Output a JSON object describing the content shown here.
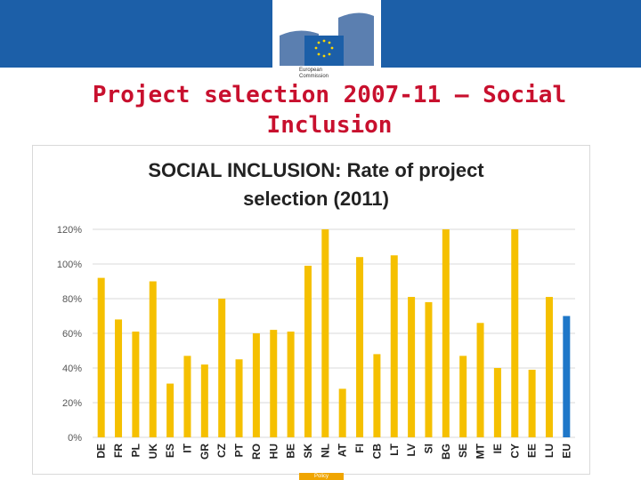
{
  "header": {
    "logo_line1": "European",
    "logo_line2": "Commission"
  },
  "slide": {
    "title_line1": "Project selection 2007-11 – Social",
    "title_line2": "Inclusion"
  },
  "footer": {
    "tag": "Policy"
  },
  "colors": {
    "bar": "#f5c000",
    "highlight": "#1f77c8",
    "grid": "#d9d9d9"
  },
  "chart_data": {
    "type": "bar",
    "title_line1": "SOCIAL INCLUSION: Rate of project",
    "title_line2": "selection (2011)",
    "xlabel": "",
    "ylabel": "",
    "ylim": [
      0,
      1.2
    ],
    "yticks": [
      "0%",
      "20%",
      "40%",
      "60%",
      "80%",
      "100%",
      "120%"
    ],
    "categories": [
      "DE",
      "FR",
      "PL",
      "UK",
      "ES",
      "IT",
      "GR",
      "CZ",
      "PT",
      "RO",
      "HU",
      "BE",
      "SK",
      "NL",
      "AT",
      "FI",
      "CB",
      "LT",
      "LV",
      "SI",
      "BG",
      "SE",
      "MT",
      "IE",
      "CY",
      "EE",
      "LU",
      "EU"
    ],
    "values": [
      0.92,
      0.68,
      0.61,
      0.9,
      0.31,
      0.47,
      0.42,
      0.8,
      0.45,
      0.6,
      0.62,
      0.61,
      0.99,
      1.2,
      0.28,
      1.04,
      0.48,
      1.05,
      0.81,
      0.78,
      1.2,
      0.47,
      0.66,
      0.4,
      1.2,
      0.39,
      0.81,
      0.7
    ],
    "highlight_category": "EU"
  }
}
